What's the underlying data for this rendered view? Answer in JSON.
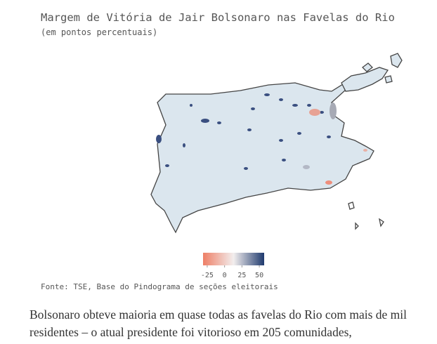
{
  "header": {
    "title": "Margem de Vitória de Jair Bolsonaro nas Favelas do Rio",
    "subtitle": "(em pontos percentuais)"
  },
  "legend": {
    "lim": [
      -31,
      57
    ],
    "ticks": [
      -25,
      0,
      25,
      50
    ],
    "colors": [
      "#ee7f66",
      "#f2eeee",
      "#1f3a6e"
    ]
  },
  "source": "Fonte: TSE, Base do Pindograma de seções eleitorais",
  "paragraph": "Bolsonaro obteve maioria em quase todas as favelas do Rio com mais de mil residentes – o atual presidente foi vitorioso em 205 comunidades,"
}
